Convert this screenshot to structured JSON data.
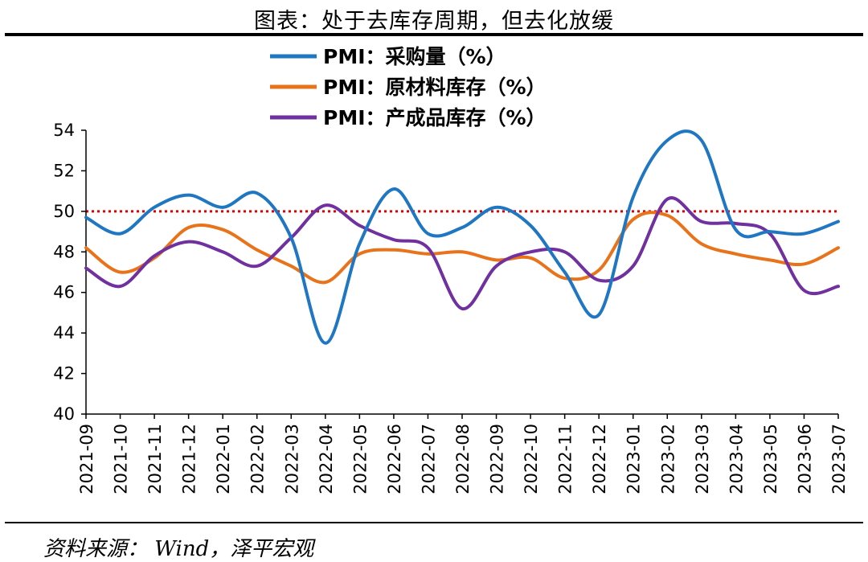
{
  "title": "图表：处于去库存周期，但去化放缓",
  "source": "资料来源： Wind，泽平宏观",
  "colors": {
    "purchase": "#1f77c3",
    "raw_inventory": "#e8731a",
    "finished_inventory": "#7030a0",
    "reference": "#e00000"
  },
  "chart_data": {
    "type": "line",
    "categories": [
      "2021-09",
      "2021-10",
      "2021-11",
      "2021-12",
      "2022-01",
      "2022-02",
      "2022-03",
      "2022-04",
      "2022-05",
      "2022-06",
      "2022-07",
      "2022-08",
      "2022-09",
      "2022-10",
      "2022-11",
      "2022-12",
      "2023-01",
      "2023-02",
      "2023-03",
      "2023-04",
      "2023-05",
      "2023-06",
      "2023-07"
    ],
    "ylim": [
      40,
      54
    ],
    "yticks": [
      "40",
      "42",
      "44",
      "46",
      "48",
      "50",
      "52",
      "54"
    ],
    "reference_line": 50,
    "reference_style": "dotted",
    "legend_position": "top-center",
    "series": [
      {
        "name": "PMI：采购量（%）",
        "color_key": "purchase",
        "values": [
          49.7,
          48.9,
          50.2,
          50.8,
          50.2,
          50.9,
          48.7,
          43.5,
          48.4,
          51.1,
          48.9,
          49.2,
          50.2,
          49.3,
          47.0,
          44.9,
          50.7,
          53.5,
          53.5,
          49.1,
          49.0,
          48.9,
          49.5
        ]
      },
      {
        "name": "PMI：原材料库存（%）",
        "color_key": "raw_inventory",
        "values": [
          48.2,
          47.0,
          47.7,
          49.2,
          49.1,
          48.1,
          47.3,
          46.5,
          47.9,
          48.1,
          47.9,
          48.0,
          47.6,
          47.7,
          46.7,
          47.1,
          49.6,
          49.8,
          48.4,
          47.9,
          47.6,
          47.4,
          48.2
        ]
      },
      {
        "name": "PMI：产成品库存（%）",
        "color_key": "finished_inventory",
        "values": [
          47.2,
          46.3,
          47.8,
          48.5,
          48.0,
          47.3,
          48.7,
          50.3,
          49.3,
          48.6,
          48.2,
          45.2,
          47.3,
          48.0,
          48.0,
          46.6,
          47.3,
          50.6,
          49.5,
          49.4,
          48.9,
          46.1,
          46.3
        ]
      }
    ]
  }
}
